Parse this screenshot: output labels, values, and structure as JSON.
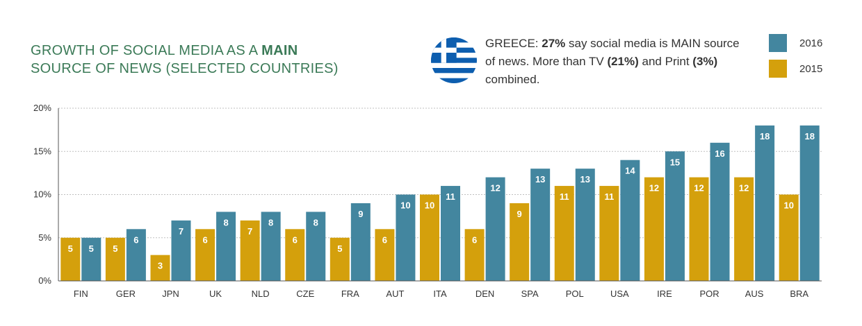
{
  "header": {
    "title_line1_prefix": "GROWTH OF SOCIAL MEDIA AS A ",
    "title_line1_bold": "MAIN",
    "title_line2": "SOURCE OF NEWS (SELECTED COUNTRIES)"
  },
  "callout": {
    "p1": "GREECE: ",
    "b1": "27%",
    "p2": " say social media is MAIN source of news. More than TV ",
    "b2": "(21%)",
    "p3": " and Print ",
    "b3": "(3%)",
    "p4": " combined."
  },
  "colors": {
    "series_2016": "#43869f",
    "series_2015": "#d4a00c",
    "title": "#3b7a57",
    "flag_blue": "#0d5eaf"
  },
  "chart_data": {
    "type": "bar",
    "categories": [
      "FIN",
      "GER",
      "JPN",
      "UK",
      "NLD",
      "CZE",
      "FRA",
      "AUT",
      "ITA",
      "DEN",
      "SPA",
      "POL",
      "USA",
      "IRE",
      "POR",
      "AUS",
      "BRA"
    ],
    "series": [
      {
        "name": "2015",
        "values": [
          5,
          5,
          3,
          6,
          7,
          6,
          5,
          6,
          10,
          6,
          9,
          11,
          11,
          12,
          12,
          12,
          10
        ]
      },
      {
        "name": "2016",
        "values": [
          5,
          6,
          7,
          8,
          8,
          8,
          9,
          10,
          11,
          12,
          13,
          13,
          14,
          15,
          16,
          18,
          18
        ]
      }
    ],
    "yticks": [
      "0%",
      "5%",
      "10%",
      "15%",
      "20%"
    ],
    "ylim": [
      0,
      20
    ],
    "grid": true,
    "legend_position": "top-right"
  }
}
